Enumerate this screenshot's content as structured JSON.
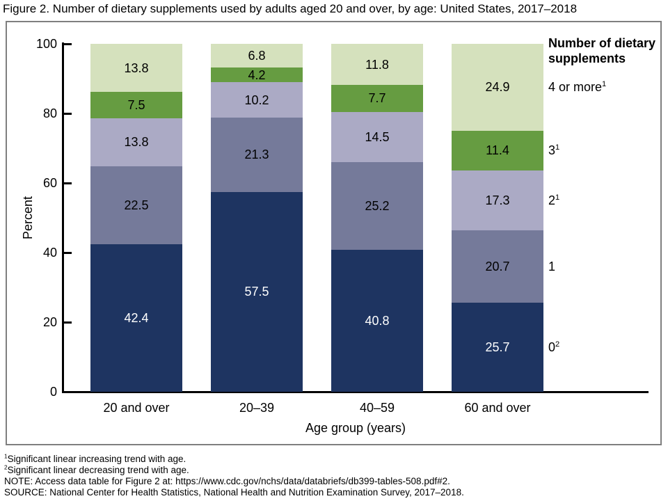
{
  "figure": {
    "title": "Figure 2. Number of dietary supplements used by adults aged 20 and over, by age: United States, 2017–2018"
  },
  "chart_data": {
    "type": "stacked-bar",
    "title": "Figure 2. Number of dietary supplements used by adults aged 20 and over, by age: United States, 2017–2018",
    "xlabel": "Age group (years)",
    "ylabel": "Percent",
    "ylim": [
      0,
      100
    ],
    "yticks": [
      0,
      20,
      40,
      60,
      80,
      100
    ],
    "grid": false,
    "legend_title": "Number of dietary supplements",
    "legend_position": "right",
    "categories": [
      "20 and over",
      "20–39",
      "40–59",
      "60 and over"
    ],
    "series": [
      {
        "name": "0",
        "legend_sup": "2",
        "color": "#1e3461",
        "label_color": "#ffffff",
        "values": [
          42.4,
          57.5,
          40.8,
          25.7
        ]
      },
      {
        "name": "1",
        "legend_sup": "",
        "color": "#757a9a",
        "label_color": "#000000",
        "values": [
          22.5,
          21.3,
          25.2,
          20.7
        ]
      },
      {
        "name": "2",
        "legend_sup": "1",
        "color": "#abaac5",
        "label_color": "#000000",
        "values": [
          13.8,
          10.2,
          14.5,
          17.3
        ]
      },
      {
        "name": "3",
        "legend_sup": "1",
        "color": "#669c41",
        "label_color": "#000000",
        "values": [
          7.5,
          4.2,
          7.7,
          11.4
        ]
      },
      {
        "name": "4 or more",
        "legend_sup": "1",
        "color": "#d5e1bd",
        "label_color": "#000000",
        "values": [
          13.8,
          6.8,
          11.8,
          24.9
        ]
      }
    ]
  },
  "footnotes": [
    {
      "sup": "1",
      "text": "Significant linear increasing trend with age."
    },
    {
      "sup": "2",
      "text": "Significant linear decreasing trend with age."
    },
    {
      "sup": "",
      "text": "NOTE: Access data table for Figure 2 at: https://www.cdc.gov/nchs/data/databriefs/db399-tables-508.pdf#2."
    },
    {
      "sup": "",
      "text": "SOURCE: National Center for Health Statistics, National Health and Nutrition Examination Survey, 2017–2018."
    }
  ]
}
